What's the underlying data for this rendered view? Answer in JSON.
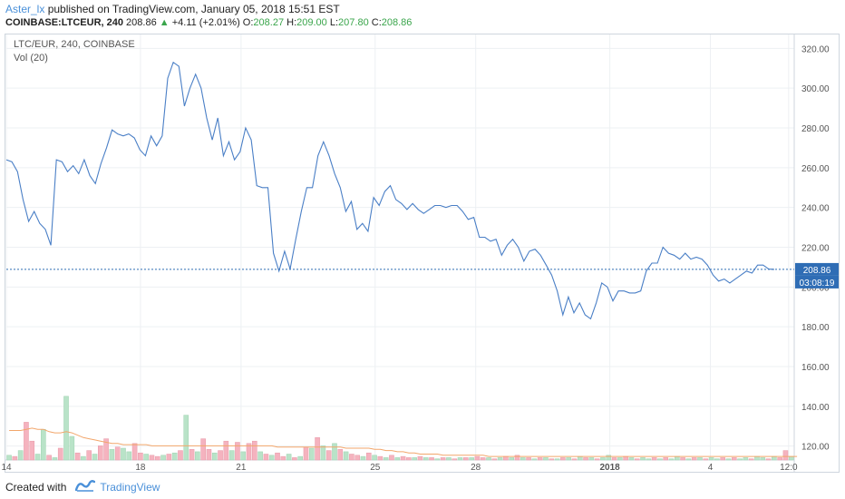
{
  "header": {
    "author": "Aster_lx",
    "published_text": "published on TradingView.com, January 05, 2018 15:51 EST",
    "symbol": "COINBASE:LTCEUR, 240",
    "last": "208.86",
    "change": "+4.11 (+2.01%)",
    "o_label": "O:",
    "o_value": "208.27",
    "h_label": "H:",
    "h_value": "209.00",
    "l_label": "L:",
    "l_value": "207.80",
    "c_label": "C:",
    "c_value": "208.86"
  },
  "legend": {
    "line1": "LTC/EUR, 240, COINBASE",
    "line2": "Vol (20)"
  },
  "price_badges": {
    "last_price": "208.86",
    "countdown": "03:08:19"
  },
  "footer": {
    "created_with": "Created with",
    "brand": "TradingView"
  },
  "colors": {
    "price_line": "#4a7fc6",
    "last_price": "#2f6db5",
    "vol_up": "#b9e3c8",
    "vol_down": "#f5b3bf",
    "vol_ma": "#f2a66b",
    "grid": "#edf0f3"
  },
  "chart_data": {
    "type": "line",
    "title": "LTC/EUR, 240, COINBASE",
    "ylim": [
      113,
      327
    ],
    "y_ticks": [
      120,
      140,
      160,
      180,
      200,
      220,
      240,
      260,
      280,
      300,
      320
    ],
    "x_ticks": [
      {
        "label": "14",
        "x": 0
      },
      {
        "label": "18",
        "x": 24
      },
      {
        "label": "21",
        "x": 42
      },
      {
        "label": "25",
        "x": 66
      },
      {
        "label": "28",
        "x": 84
      },
      {
        "label": "2018",
        "x": 108
      },
      {
        "label": "4",
        "x": 126
      },
      {
        "label": "12:0",
        "x": 140
      }
    ],
    "xlim": [
      0,
      141
    ],
    "last_price": 208.86,
    "series": [
      {
        "values": [
          264,
          263,
          258,
          244,
          233,
          238,
          232,
          229,
          221,
          264,
          263,
          258,
          261,
          257,
          264,
          256,
          252,
          262,
          270,
          279,
          277,
          276,
          277,
          275,
          269,
          266,
          276,
          271,
          276,
          305,
          313,
          311,
          291,
          300,
          307,
          300,
          285,
          274,
          285,
          266,
          273,
          264,
          268,
          280,
          274,
          251,
          250,
          250,
          217,
          208,
          218,
          209,
          224,
          238,
          250,
          250,
          266,
          273,
          266,
          257,
          250,
          238,
          243,
          229,
          232,
          228,
          245,
          241,
          248,
          251,
          244,
          242,
          239,
          242,
          239,
          237,
          239,
          241,
          241,
          240,
          241,
          241,
          238,
          234,
          235,
          225,
          225,
          223,
          224,
          216,
          221,
          224,
          220,
          213,
          218,
          219,
          216,
          211,
          206,
          198,
          186,
          195,
          187,
          192,
          186,
          184,
          192,
          202,
          200,
          193,
          198,
          198,
          197,
          197,
          198,
          208,
          212,
          212,
          220,
          217,
          216,
          214,
          217,
          214,
          215,
          214,
          211,
          206,
          203,
          204,
          202,
          204,
          206,
          208,
          207,
          211,
          211,
          209,
          208.86
        ]
      }
    ],
    "volume": {
      "name": "Vol (20)",
      "bars": [
        {
          "v": 4,
          "d": 0
        },
        {
          "v": 3,
          "d": 1
        },
        {
          "v": 8,
          "d": 0
        },
        {
          "v": 32,
          "d": 1
        },
        {
          "v": 16,
          "d": 1
        },
        {
          "v": 5,
          "d": 0
        },
        {
          "v": 26,
          "d": 0
        },
        {
          "v": 4,
          "d": 1
        },
        {
          "v": 2,
          "d": 0
        },
        {
          "v": 10,
          "d": 1
        },
        {
          "v": 54,
          "d": 0
        },
        {
          "v": 20,
          "d": 0
        },
        {
          "v": 6,
          "d": 1
        },
        {
          "v": 3,
          "d": 0
        },
        {
          "v": 8,
          "d": 1
        },
        {
          "v": 5,
          "d": 0
        },
        {
          "v": 12,
          "d": 1
        },
        {
          "v": 18,
          "d": 1
        },
        {
          "v": 9,
          "d": 0
        },
        {
          "v": 11,
          "d": 1
        },
        {
          "v": 10,
          "d": 0
        },
        {
          "v": 7,
          "d": 0
        },
        {
          "v": 14,
          "d": 1
        },
        {
          "v": 6,
          "d": 1
        },
        {
          "v": 5,
          "d": 0
        },
        {
          "v": 4,
          "d": 1
        },
        {
          "v": 3,
          "d": 1
        },
        {
          "v": 4,
          "d": 0
        },
        {
          "v": 5,
          "d": 1
        },
        {
          "v": 6,
          "d": 0
        },
        {
          "v": 8,
          "d": 1
        },
        {
          "v": 38,
          "d": 0
        },
        {
          "v": 9,
          "d": 1
        },
        {
          "v": 7,
          "d": 0
        },
        {
          "v": 18,
          "d": 1
        },
        {
          "v": 9,
          "d": 1
        },
        {
          "v": 6,
          "d": 0
        },
        {
          "v": 8,
          "d": 1
        },
        {
          "v": 16,
          "d": 1
        },
        {
          "v": 8,
          "d": 0
        },
        {
          "v": 15,
          "d": 1
        },
        {
          "v": 7,
          "d": 0
        },
        {
          "v": 14,
          "d": 1
        },
        {
          "v": 16,
          "d": 1
        },
        {
          "v": 7,
          "d": 0
        },
        {
          "v": 5,
          "d": 1
        },
        {
          "v": 4,
          "d": 0
        },
        {
          "v": 6,
          "d": 1
        },
        {
          "v": 3,
          "d": 1
        },
        {
          "v": 5,
          "d": 0
        },
        {
          "v": 2,
          "d": 1
        },
        {
          "v": 3,
          "d": 0
        },
        {
          "v": 11,
          "d": 1
        },
        {
          "v": 10,
          "d": 0
        },
        {
          "v": 19,
          "d": 1
        },
        {
          "v": 12,
          "d": 0
        },
        {
          "v": 8,
          "d": 1
        },
        {
          "v": 14,
          "d": 0
        },
        {
          "v": 9,
          "d": 1
        },
        {
          "v": 7,
          "d": 0
        },
        {
          "v": 5,
          "d": 1
        },
        {
          "v": 4,
          "d": 1
        },
        {
          "v": 3,
          "d": 0
        },
        {
          "v": 6,
          "d": 1
        },
        {
          "v": 4,
          "d": 0
        },
        {
          "v": 3,
          "d": 1
        },
        {
          "v": 2,
          "d": 0
        },
        {
          "v": 4,
          "d": 1
        },
        {
          "v": 2,
          "d": 0
        },
        {
          "v": 3,
          "d": 1
        },
        {
          "v": 2,
          "d": 1
        },
        {
          "v": 2,
          "d": 0
        },
        {
          "v": 3,
          "d": 1
        },
        {
          "v": 2,
          "d": 0
        },
        {
          "v": 2,
          "d": 1
        },
        {
          "v": 1,
          "d": 0
        },
        {
          "v": 2,
          "d": 1
        },
        {
          "v": 2,
          "d": 0
        },
        {
          "v": 1,
          "d": 1
        },
        {
          "v": 2,
          "d": 0
        },
        {
          "v": 2,
          "d": 1
        },
        {
          "v": 2,
          "d": 0
        },
        {
          "v": 3,
          "d": 1
        },
        {
          "v": 2,
          "d": 1
        },
        {
          "v": 2,
          "d": 0
        },
        {
          "v": 1,
          "d": 1
        },
        {
          "v": 2,
          "d": 0
        },
        {
          "v": 3,
          "d": 1
        },
        {
          "v": 2,
          "d": 0
        },
        {
          "v": 4,
          "d": 1
        },
        {
          "v": 2,
          "d": 0
        },
        {
          "v": 2,
          "d": 1
        },
        {
          "v": 1,
          "d": 0
        },
        {
          "v": 2,
          "d": 1
        },
        {
          "v": 2,
          "d": 0
        },
        {
          "v": 1,
          "d": 1
        },
        {
          "v": 1,
          "d": 0
        },
        {
          "v": 2,
          "d": 1
        },
        {
          "v": 2,
          "d": 0
        },
        {
          "v": 1,
          "d": 1
        },
        {
          "v": 3,
          "d": 0
        },
        {
          "v": 2,
          "d": 1
        },
        {
          "v": 2,
          "d": 0
        },
        {
          "v": 1,
          "d": 1
        },
        {
          "v": 2,
          "d": 0
        },
        {
          "v": 4,
          "d": 0
        },
        {
          "v": 2,
          "d": 1
        },
        {
          "v": 2,
          "d": 0
        },
        {
          "v": 3,
          "d": 1
        },
        {
          "v": 2,
          "d": 0
        },
        {
          "v": 1,
          "d": 1
        },
        {
          "v": 2,
          "d": 0
        },
        {
          "v": 1,
          "d": 0
        },
        {
          "v": 2,
          "d": 1
        },
        {
          "v": 1,
          "d": 0
        },
        {
          "v": 2,
          "d": 1
        },
        {
          "v": 1,
          "d": 0
        },
        {
          "v": 3,
          "d": 0
        },
        {
          "v": 2,
          "d": 1
        },
        {
          "v": 1,
          "d": 0
        },
        {
          "v": 2,
          "d": 1
        },
        {
          "v": 2,
          "d": 0
        },
        {
          "v": 1,
          "d": 1
        },
        {
          "v": 2,
          "d": 0
        },
        {
          "v": 1,
          "d": 0
        },
        {
          "v": 2,
          "d": 1
        },
        {
          "v": 1,
          "d": 0
        },
        {
          "v": 2,
          "d": 1
        },
        {
          "v": 1,
          "d": 0
        },
        {
          "v": 2,
          "d": 0
        },
        {
          "v": 1,
          "d": 1
        },
        {
          "v": 3,
          "d": 0
        },
        {
          "v": 2,
          "d": 0
        },
        {
          "v": 1,
          "d": 1
        },
        {
          "v": 3,
          "d": 0
        },
        {
          "v": 2,
          "d": 1
        },
        {
          "v": 8,
          "d": 1
        },
        {
          "v": 3,
          "d": 0
        }
      ],
      "ma": [
        25,
        25,
        25,
        26,
        27,
        26,
        26,
        24,
        23,
        23,
        24,
        23,
        21,
        19,
        18,
        17,
        16,
        15,
        14,
        14,
        13,
        13,
        13,
        13,
        13,
        12,
        12,
        12,
        12,
        12,
        12,
        12,
        12,
        12,
        12,
        12,
        12,
        12,
        12,
        12,
        12,
        12,
        12,
        12,
        12,
        12,
        12,
        11,
        11,
        11,
        11,
        11,
        11,
        11,
        11,
        11,
        11,
        11,
        11,
        10,
        10,
        10,
        10,
        10,
        9,
        9,
        8,
        8,
        7,
        7,
        6,
        6,
        5,
        5,
        5,
        5,
        4,
        4,
        4,
        4,
        4,
        4,
        4,
        4,
        3,
        3,
        3,
        3,
        3,
        3,
        3,
        3,
        3,
        3,
        3,
        3,
        3,
        3,
        3,
        3,
        3,
        3,
        3,
        3,
        3,
        3,
        3,
        3,
        3,
        3,
        3,
        3,
        3,
        3,
        3,
        3,
        3,
        3,
        3,
        3,
        3,
        3,
        3,
        3,
        3,
        3,
        3,
        3,
        3,
        3,
        3,
        3,
        3,
        3,
        3,
        3,
        3,
        3,
        3
      ]
    }
  }
}
